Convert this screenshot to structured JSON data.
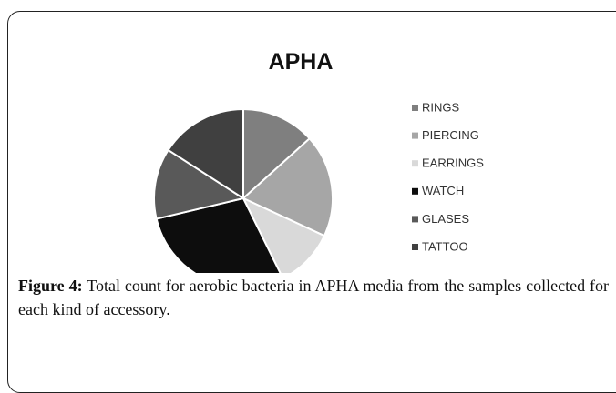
{
  "chart_data": {
    "type": "pie",
    "title": "APHA",
    "categories": [
      "RINGS",
      "PIERCING",
      "EARRINGS",
      "WATCH",
      "GLASES",
      "TATTOO"
    ],
    "values": [
      13.3,
      18.6,
      10.8,
      28.6,
      12.8,
      15.9
    ],
    "colors": [
      "#7f7f7f",
      "#a6a6a6",
      "#d9d9d9",
      "#0d0d0d",
      "#595959",
      "#404040"
    ],
    "legend": "right",
    "figure_label": "Figure 4:",
    "caption": "Total count for aerobic bacteria in APHA media from the samples collected for each kind of accessory."
  }
}
